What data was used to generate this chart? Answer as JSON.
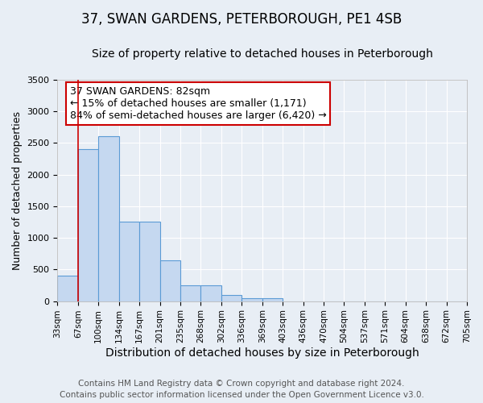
{
  "title": "37, SWAN GARDENS, PETERBOROUGH, PE1 4SB",
  "subtitle": "Size of property relative to detached houses in Peterborough",
  "xlabel": "Distribution of detached houses by size in Peterborough",
  "ylabel": "Number of detached properties",
  "footer_lines": [
    "Contains HM Land Registry data © Crown copyright and database right 2024.",
    "Contains public sector information licensed under the Open Government Licence v3.0."
  ],
  "bin_labels": [
    "33sqm",
    "67sqm",
    "100sqm",
    "134sqm",
    "167sqm",
    "201sqm",
    "235sqm",
    "268sqm",
    "302sqm",
    "336sqm",
    "369sqm",
    "403sqm",
    "436sqm",
    "470sqm",
    "504sqm",
    "537sqm",
    "571sqm",
    "604sqm",
    "638sqm",
    "672sqm",
    "705sqm"
  ],
  "bar_values": [
    400,
    2400,
    2600,
    1250,
    1250,
    650,
    250,
    250,
    100,
    50,
    50,
    0,
    0,
    0,
    0,
    0,
    0,
    0,
    0,
    0
  ],
  "bar_color": "#c5d8f0",
  "bar_edge_color": "#5b9bd5",
  "bar_width": 1.0,
  "ylim": [
    0,
    3500
  ],
  "yticks": [
    0,
    500,
    1000,
    1500,
    2000,
    2500,
    3000,
    3500
  ],
  "red_line_x": 1,
  "annotation_box_text": "37 SWAN GARDENS: 82sqm\n← 15% of detached houses are smaller (1,171)\n84% of semi-detached houses are larger (6,420) →",
  "annotation_box_color": "#cc0000",
  "background_color": "#e8eef5",
  "plot_bg_color": "#e8eef5",
  "grid_color": "#ffffff",
  "title_fontsize": 12,
  "subtitle_fontsize": 10,
  "xlabel_fontsize": 10,
  "ylabel_fontsize": 9,
  "annotation_fontsize": 9,
  "footer_fontsize": 7.5
}
